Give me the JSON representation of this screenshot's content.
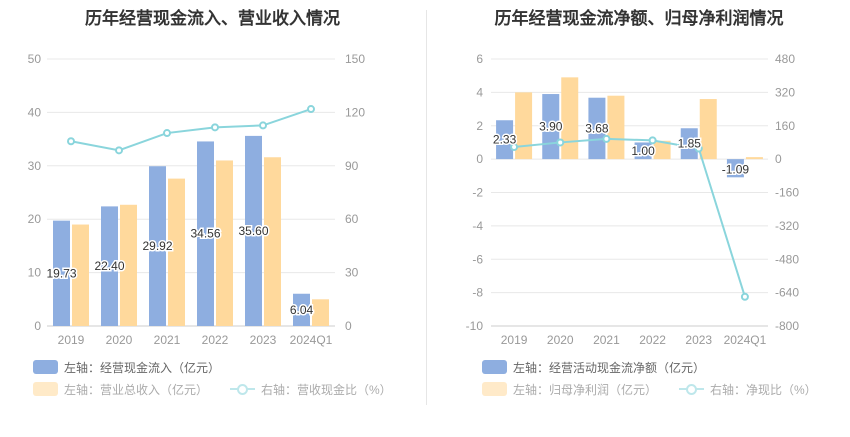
{
  "colors": {
    "bar_left": "#8eaee0",
    "bar_right": "#ffd99c",
    "line": "#8ad5dc",
    "axis_text": "#999999",
    "grid": "#e8e8e8"
  },
  "chart_data": [
    {
      "type": "bar",
      "title": "历年经营现金流入、营业收入情况",
      "categories": [
        "2019",
        "2020",
        "2021",
        "2022",
        "2023",
        "2024Q1"
      ],
      "ylim_left": [
        0,
        50
      ],
      "yticks_left": [
        "0",
        "10",
        "20",
        "30",
        "40",
        "50"
      ],
      "ylim_right": [
        0,
        150
      ],
      "yticks_right": [
        "0",
        "30",
        "60",
        "90",
        "120",
        "150"
      ],
      "series": [
        {
          "name": "左轴：经营现金流入（亿元）",
          "axis": "left",
          "kind": "bar",
          "values": [
            19.73,
            22.4,
            29.92,
            34.56,
            35.6,
            6.04
          ],
          "labels": [
            "19.73",
            "22.40",
            "29.92",
            "34.56",
            "35.60",
            "6.04"
          ]
        },
        {
          "name": "左轴：营业总收入（亿元）",
          "axis": "left",
          "kind": "bar",
          "values": [
            19.0,
            22.7,
            27.6,
            31.0,
            31.6,
            5.0
          ]
        },
        {
          "name": "右轴：营收现金比（%）",
          "axis": "right",
          "kind": "line",
          "values": [
            103.8,
            98.7,
            108.4,
            111.6,
            112.7,
            121.9
          ]
        }
      ],
      "grid": true,
      "legend_position": "bottom"
    },
    {
      "type": "bar",
      "title": "历年经营现金流净额、归母净利润情况",
      "categories": [
        "2019",
        "2020",
        "2021",
        "2022",
        "2023",
        "2024Q1"
      ],
      "ylim_left": [
        -10,
        6
      ],
      "yticks_left": [
        "-10",
        "-8",
        "-6",
        "-4",
        "-2",
        "0",
        "2",
        "4",
        "6"
      ],
      "ylim_right": [
        -800,
        480
      ],
      "yticks_right": [
        "-800",
        "-640",
        "-480",
        "-320",
        "-160",
        "0",
        "160",
        "320",
        "480"
      ],
      "series": [
        {
          "name": "左轴：经营活动现金流净额（亿元）",
          "axis": "left",
          "kind": "bar",
          "values": [
            2.33,
            3.9,
            3.68,
            1.0,
            1.85,
            -1.09
          ],
          "labels": [
            "2.33",
            "3.90",
            "3.68",
            "1.00",
            "1.85",
            "-1.09"
          ]
        },
        {
          "name": "左轴：归母净利润（亿元）",
          "axis": "left",
          "kind": "bar",
          "values": [
            4.0,
            4.9,
            3.8,
            1.1,
            3.6,
            0.12
          ]
        },
        {
          "name": "右轴：净现比（%）",
          "axis": "right",
          "kind": "line",
          "values": [
            58,
            80,
            97,
            90,
            51,
            -660
          ]
        }
      ],
      "grid": true,
      "legend_position": "bottom"
    }
  ]
}
